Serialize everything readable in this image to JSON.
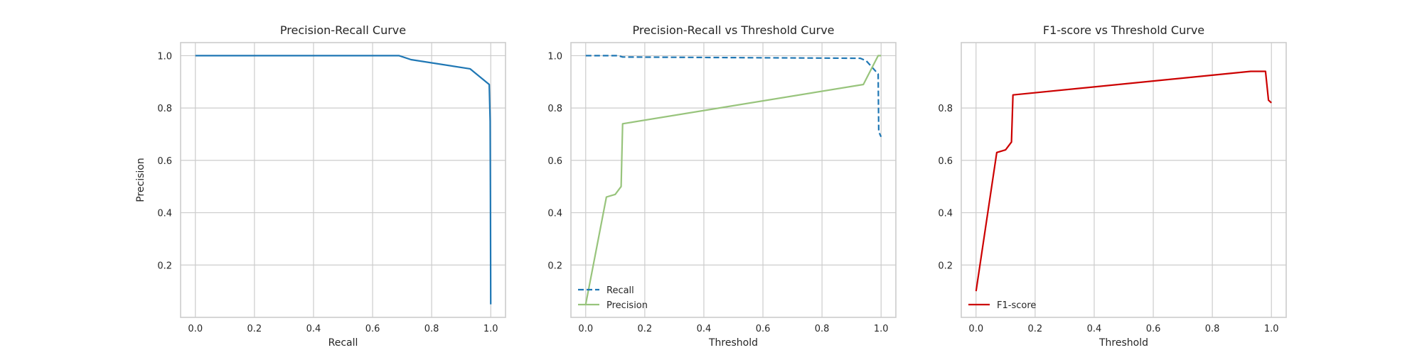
{
  "chart_data": [
    {
      "type": "line",
      "title": "Precision-Recall Curve",
      "xlabel": "Recall",
      "ylabel": "Precision",
      "xlim": [
        -0.05,
        1.05
      ],
      "ylim": [
        0.0,
        1.05
      ],
      "xticks": [
        0.0,
        0.2,
        0.4,
        0.6,
        0.8,
        1.0
      ],
      "yticks": [
        0.2,
        0.4,
        0.6,
        0.8,
        1.0
      ],
      "xtick_labels": [
        "0.0",
        "0.2",
        "0.4",
        "0.6",
        "0.8",
        "1.0"
      ],
      "ytick_labels": [
        "0.2",
        "0.4",
        "0.6",
        "0.8",
        "1.0"
      ],
      "grid": true,
      "series": [
        {
          "color": "#1f77b4",
          "style": "solid",
          "x": [
            0.0,
            0.69,
            0.73,
            0.93,
            0.995,
            0.998,
            0.999,
            1.0
          ],
          "y": [
            1.0,
            1.0,
            0.985,
            0.95,
            0.89,
            0.75,
            0.46,
            0.05
          ]
        }
      ]
    },
    {
      "type": "line",
      "title": "Precision-Recall vs Threshold Curve",
      "xlabel": "Threshold",
      "ylabel": "",
      "xlim": [
        -0.05,
        1.05
      ],
      "ylim": [
        0.0,
        1.05
      ],
      "xticks": [
        0.0,
        0.2,
        0.4,
        0.6,
        0.8,
        1.0
      ],
      "yticks": [
        0.2,
        0.4,
        0.6,
        0.8,
        1.0
      ],
      "xtick_labels": [
        "0.0",
        "0.2",
        "0.4",
        "0.6",
        "0.8",
        "1.0"
      ],
      "ytick_labels": [
        "0.2",
        "0.4",
        "0.6",
        "0.8",
        "1.0"
      ],
      "grid": true,
      "legend": "lower-left",
      "series": [
        {
          "name": "Recall",
          "color": "#1f77b4",
          "style": "dashed",
          "x": [
            0.0,
            0.11,
            0.125,
            0.93,
            0.95,
            0.99,
            0.992,
            1.0
          ],
          "y": [
            1.0,
            1.0,
            0.995,
            0.99,
            0.98,
            0.93,
            0.71,
            0.69
          ]
        },
        {
          "name": "Precision",
          "color": "#98c47c",
          "style": "solid",
          "x": [
            0.0,
            0.07,
            0.1,
            0.12,
            0.125,
            0.94,
            0.99,
            1.0
          ],
          "y": [
            0.05,
            0.46,
            0.47,
            0.5,
            0.74,
            0.89,
            1.0,
            1.0
          ]
        }
      ]
    },
    {
      "type": "line",
      "title": "F1-score vs Threshold Curve",
      "xlabel": "Threshold",
      "ylabel": "",
      "xlim": [
        -0.05,
        1.05
      ],
      "ylim": [
        0.0,
        1.05
      ],
      "xticks": [
        0.0,
        0.2,
        0.4,
        0.6,
        0.8,
        1.0
      ],
      "yticks": [
        0.2,
        0.4,
        0.6,
        0.8
      ],
      "xtick_labels": [
        "0.0",
        "0.2",
        "0.4",
        "0.6",
        "0.8",
        "1.0"
      ],
      "ytick_labels": [
        "0.2",
        "0.4",
        "0.6",
        "0.8"
      ],
      "grid": true,
      "legend": "lower-left",
      "series": [
        {
          "name": "F1-score",
          "color": "#cc0000",
          "style": "solid",
          "x": [
            0.0,
            0.07,
            0.1,
            0.12,
            0.125,
            0.93,
            0.98,
            0.99,
            1.0
          ],
          "y": [
            0.1,
            0.63,
            0.64,
            0.67,
            0.85,
            0.94,
            0.94,
            0.83,
            0.82
          ]
        }
      ]
    }
  ]
}
